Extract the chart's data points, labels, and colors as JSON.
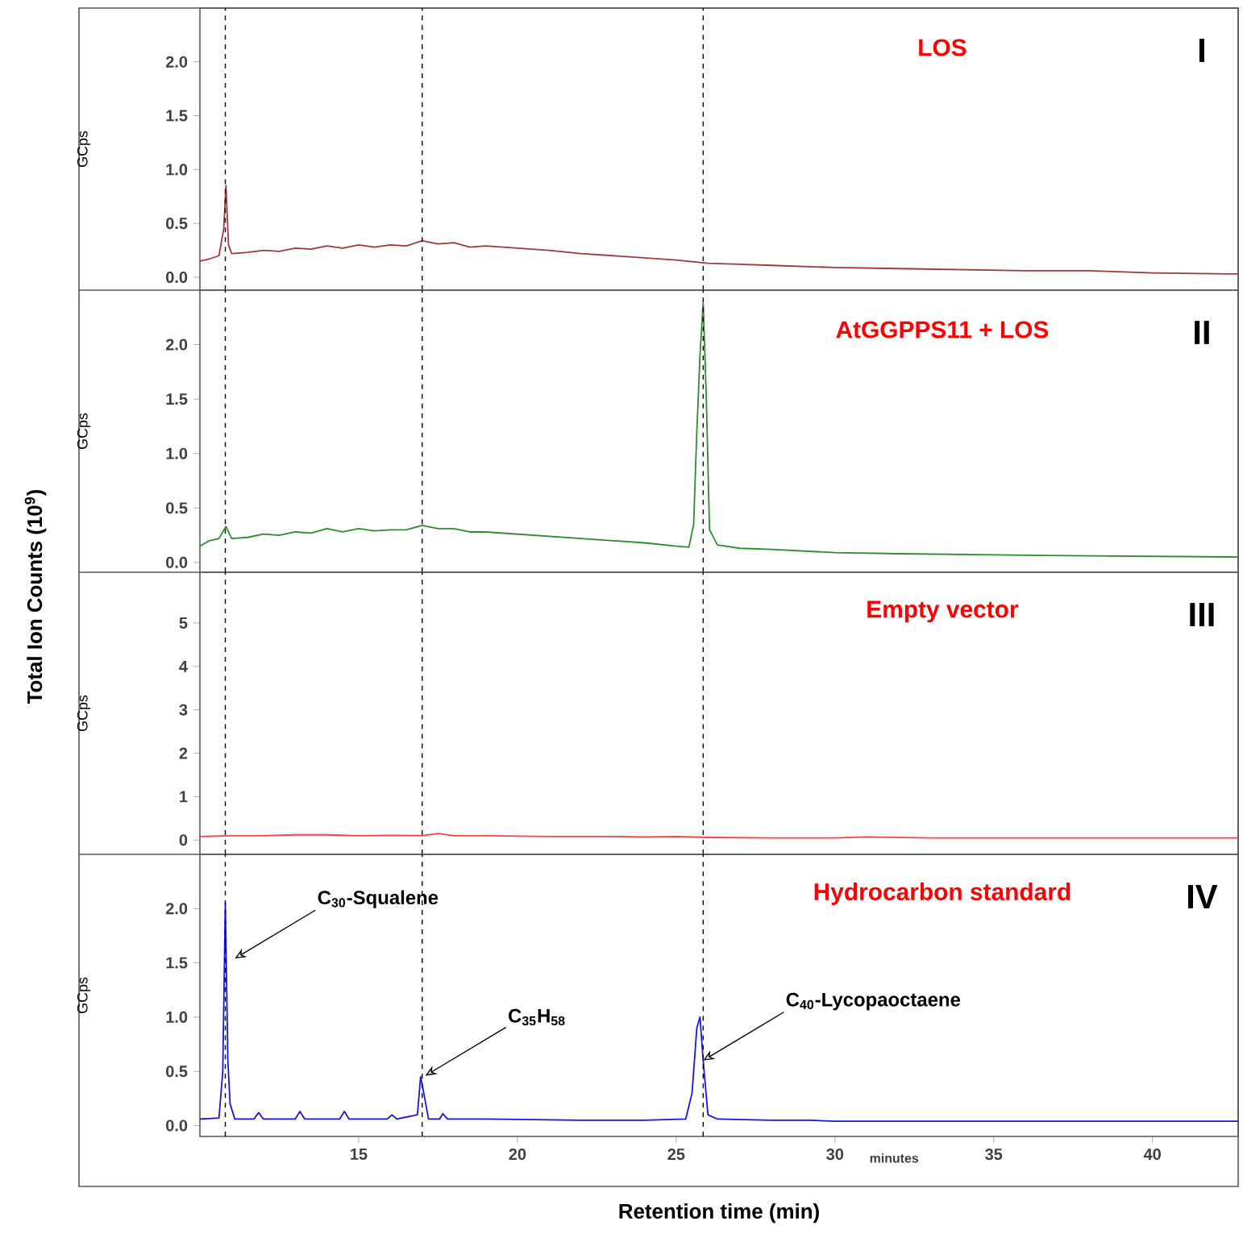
{
  "chart_data": [
    {
      "type": "line",
      "title": "LOS",
      "ylabel": "GCps",
      "xlim": [
        10,
        42.7
      ],
      "ylim": [
        -0.12,
        2.5
      ],
      "tick_labels": "y",
      "yticks": [
        {
          "value": 0,
          "label": "0.0"
        },
        {
          "value": 0.5,
          "label": "0.5"
        },
        {
          "value": 1,
          "label": "1.0"
        },
        {
          "value": 1.5,
          "label": "1.5"
        },
        {
          "value": 2,
          "label": "2.0"
        }
      ],
      "series": [
        {
          "color": "#a03a3a",
          "x": [
            10,
            10.3,
            10.6,
            10.75,
            10.82,
            10.9,
            11.0,
            11.5,
            12,
            12.5,
            13,
            13.5,
            14,
            14.5,
            15,
            15.5,
            16,
            16.5,
            17,
            17.5,
            18,
            18.5,
            19,
            20,
            21,
            22,
            23,
            24,
            25,
            26,
            27,
            28,
            29,
            30,
            32,
            34,
            36,
            38,
            40,
            42.7
          ],
          "values": [
            0.15,
            0.17,
            0.2,
            0.45,
            0.85,
            0.3,
            0.22,
            0.23,
            0.25,
            0.24,
            0.27,
            0.26,
            0.29,
            0.27,
            0.3,
            0.28,
            0.3,
            0.29,
            0.34,
            0.31,
            0.32,
            0.28,
            0.29,
            0.27,
            0.25,
            0.22,
            0.2,
            0.18,
            0.16,
            0.13,
            0.12,
            0.11,
            0.1,
            0.09,
            0.08,
            0.07,
            0.06,
            0.06,
            0.04,
            0.03
          ]
        }
      ],
      "ref_lines": [
        {
          "axis": "x",
          "value": 10.8,
          "color": "#000000",
          "line_style": "dashed"
        },
        {
          "axis": "x",
          "value": 17.0,
          "color": "#000000",
          "line_style": "dashed"
        },
        {
          "axis": "x",
          "value": 25.85,
          "color": "#000000",
          "line_style": "dashed"
        }
      ],
      "annotations": [
        "I",
        "Total Ion Counts (10$^{9}$)"
      ]
    },
    {
      "type": "line",
      "title": "AtGGPPS11 + LOS",
      "ylabel": "GCps",
      "xlim": [
        10,
        42.7
      ],
      "ylim": [
        -0.09,
        2.5
      ],
      "tick_labels": "y",
      "yticks": [
        {
          "value": 0,
          "label": "0.0"
        },
        {
          "value": 0.5,
          "label": "0.5"
        },
        {
          "value": 1,
          "label": "1.0"
        },
        {
          "value": 1.5,
          "label": "1.5"
        },
        {
          "value": 2,
          "label": "2.0"
        }
      ],
      "series": [
        {
          "color": "#2e8b2e",
          "x": [
            10,
            10.3,
            10.6,
            10.82,
            11.0,
            11.5,
            12,
            12.5,
            13,
            13.5,
            14,
            14.5,
            15,
            15.5,
            16,
            16.5,
            17,
            17.5,
            18,
            18.5,
            19,
            20,
            21,
            22,
            23,
            24,
            25,
            25.4,
            25.55,
            25.65,
            25.75,
            25.85,
            25.95,
            26.05,
            26.3,
            27,
            28,
            30,
            32,
            35,
            38,
            42.7
          ],
          "values": [
            0.15,
            0.2,
            0.22,
            0.33,
            0.22,
            0.23,
            0.26,
            0.25,
            0.28,
            0.27,
            0.31,
            0.28,
            0.31,
            0.29,
            0.3,
            0.3,
            0.34,
            0.31,
            0.31,
            0.28,
            0.28,
            0.26,
            0.24,
            0.22,
            0.2,
            0.18,
            0.15,
            0.14,
            0.35,
            1.2,
            1.9,
            2.38,
            1.5,
            0.3,
            0.16,
            0.13,
            0.12,
            0.09,
            0.08,
            0.07,
            0.06,
            0.05
          ]
        }
      ],
      "ref_lines": [
        {
          "axis": "x",
          "value": 10.8,
          "color": "#000000",
          "line_style": "dashed"
        },
        {
          "axis": "x",
          "value": 17.0,
          "color": "#000000",
          "line_style": "dashed"
        },
        {
          "axis": "x",
          "value": 25.85,
          "color": "#000000",
          "line_style": "dashed"
        }
      ],
      "annotations": [
        "II"
      ]
    },
    {
      "type": "line",
      "title": "Empty vector",
      "ylabel": "GCps",
      "xlim": [
        10,
        42.7
      ],
      "ylim": [
        -0.33,
        6.17
      ],
      "tick_labels": "y",
      "yticks": [
        0,
        1,
        2,
        3,
        4,
        5
      ],
      "series": [
        {
          "color": "#ff4040",
          "x": [
            10,
            11,
            12,
            13,
            14,
            15,
            16,
            17,
            17.5,
            18,
            19,
            20,
            21,
            22,
            23,
            24,
            25,
            26,
            28,
            30,
            31,
            33,
            36,
            40,
            42.7
          ],
          "values": [
            0.08,
            0.1,
            0.1,
            0.12,
            0.12,
            0.1,
            0.11,
            0.1,
            0.15,
            0.1,
            0.1,
            0.09,
            0.08,
            0.08,
            0.08,
            0.07,
            0.08,
            0.06,
            0.05,
            0.05,
            0.07,
            0.05,
            0.05,
            0.05,
            0.05
          ]
        }
      ],
      "ref_lines": [
        {
          "axis": "x",
          "value": 10.8,
          "color": "#000000",
          "line_style": "dashed"
        },
        {
          "axis": "x",
          "value": 17.0,
          "color": "#000000",
          "line_style": "dashed"
        },
        {
          "axis": "x",
          "value": 25.85,
          "color": "#000000",
          "line_style": "dashed"
        }
      ],
      "annotations": [
        "III"
      ]
    },
    {
      "type": "line",
      "title": "Hydrocarbon standard",
      "ylabel": "GCps",
      "xlabel": "Retention time (min)",
      "xlim": [
        10,
        42.7
      ],
      "ylim": [
        -0.1,
        2.5
      ],
      "xticks": [
        15,
        20,
        25,
        30,
        35,
        40
      ],
      "yticks": [
        {
          "value": 0,
          "label": "0.0"
        },
        {
          "value": 0.5,
          "label": "0.5"
        },
        {
          "value": 1,
          "label": "1.0"
        },
        {
          "value": 1.5,
          "label": "1.5"
        },
        {
          "value": 2,
          "label": "2.0"
        }
      ],
      "series": [
        {
          "color": "#1515e6",
          "x": [
            10,
            10.6,
            10.72,
            10.8,
            10.88,
            10.95,
            11.1,
            11.7,
            11.85,
            12,
            13.0,
            13.15,
            13.3,
            14.4,
            14.55,
            14.7,
            15.9,
            16.05,
            16.2,
            16.85,
            16.95,
            17.05,
            17.2,
            17.55,
            17.65,
            17.8,
            19,
            22,
            24,
            25.3,
            25.5,
            25.65,
            25.75,
            25.85,
            26.0,
            26.3,
            28,
            29.2,
            30,
            35,
            42.7
          ],
          "values": [
            0.06,
            0.07,
            0.5,
            2.05,
            0.6,
            0.2,
            0.06,
            0.06,
            0.12,
            0.06,
            0.06,
            0.13,
            0.06,
            0.06,
            0.13,
            0.06,
            0.06,
            0.1,
            0.06,
            0.1,
            0.45,
            0.3,
            0.06,
            0.06,
            0.11,
            0.06,
            0.06,
            0.05,
            0.05,
            0.06,
            0.3,
            0.9,
            1.0,
            0.6,
            0.1,
            0.06,
            0.05,
            0.05,
            0.04,
            0.04,
            0.04
          ]
        }
      ],
      "ref_lines": [
        {
          "axis": "x",
          "value": 10.8,
          "color": "#000000",
          "line_style": "dashed"
        },
        {
          "axis": "x",
          "value": 17.0,
          "color": "#000000",
          "line_style": "dashed"
        },
        {
          "axis": "x",
          "value": 25.85,
          "color": "#000000",
          "line_style": "dashed"
        }
      ],
      "annotations": [
        "IV",
        "minutes",
        {
          "text": "C$_{30}$-Squalene",
          "x": 11.1,
          "y": 1.54
        },
        {
          "text": "C$_{35}$H$_{58}$",
          "x": 17.1,
          "y": 0.46
        },
        {
          "text": "C$_{40}$-Lycopaoctaene",
          "x": 25.85,
          "y": 0.6
        }
      ]
    }
  ]
}
